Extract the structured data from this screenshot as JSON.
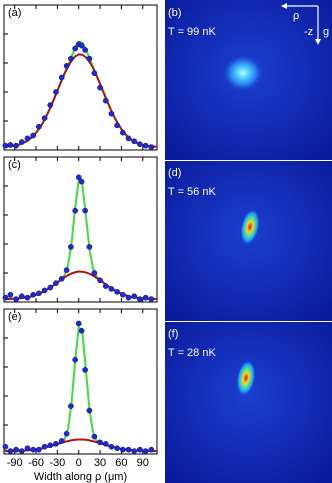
{
  "chart_data": [
    {
      "type": "scatter",
      "label": "(a)",
      "xlim": [
        -105,
        110
      ],
      "ylim": [
        0,
        1
      ],
      "xticks": [
        -90,
        -60,
        -30,
        0,
        30,
        60,
        90
      ],
      "yticks": [
        0,
        0.2,
        0.4,
        0.6,
        0.8
      ],
      "show_xticklabels": false,
      "points": {
        "color": "#1e2ad8",
        "x": [
          -103,
          -96,
          -88,
          -80,
          -72,
          -64,
          -56,
          -48,
          -40,
          -32,
          -24,
          -17,
          -11,
          -5,
          0,
          4,
          9,
          15,
          22,
          30,
          38,
          46,
          54,
          62,
          70,
          78,
          86,
          94,
          102
        ],
        "values": [
          0.03,
          0.035,
          0.03,
          0.055,
          0.08,
          0.1,
          0.16,
          0.22,
          0.31,
          0.4,
          0.5,
          0.58,
          0.63,
          0.7,
          0.73,
          0.72,
          0.69,
          0.63,
          0.53,
          0.43,
          0.34,
          0.25,
          0.17,
          0.12,
          0.08,
          0.06,
          0.04,
          0.03,
          0.02
        ]
      },
      "fits": [
        {
          "color": "#3fdc3a",
          "x": [
            -105,
            -100,
            -95,
            -90,
            -85,
            -80,
            -75,
            -70,
            -65,
            -60,
            -55,
            -50,
            -45,
            -40,
            -35,
            -30,
            -25,
            -20,
            -15,
            -10,
            -5,
            0,
            5,
            10,
            15,
            20,
            25,
            30,
            35,
            40,
            45,
            50,
            55,
            60,
            65,
            70,
            75,
            80,
            85,
            90,
            95,
            100,
            105,
            110
          ],
          "values": [
            0.022,
            0.024,
            0.026,
            0.03,
            0.036,
            0.044,
            0.055,
            0.071,
            0.091,
            0.118,
            0.151,
            0.191,
            0.238,
            0.291,
            0.348,
            0.408,
            0.468,
            0.528,
            0.585,
            0.645,
            0.706,
            0.746,
            0.741,
            0.695,
            0.633,
            0.574,
            0.515,
            0.456,
            0.396,
            0.336,
            0.279,
            0.228,
            0.182,
            0.144,
            0.112,
            0.087,
            0.067,
            0.053,
            0.042,
            0.035,
            0.029,
            0.026,
            0.024,
            0.022
          ]
        },
        {
          "color": "#b3140f",
          "x": [
            -105,
            -100,
            -95,
            -90,
            -85,
            -80,
            -75,
            -70,
            -65,
            -60,
            -55,
            -50,
            -45,
            -40,
            -35,
            -30,
            -25,
            -20,
            -15,
            -10,
            -5,
            0,
            5,
            10,
            15,
            20,
            25,
            30,
            35,
            40,
            45,
            50,
            55,
            60,
            65,
            70,
            75,
            80,
            85,
            90,
            95,
            100,
            105,
            110
          ],
          "values": [
            0.022,
            0.024,
            0.026,
            0.03,
            0.036,
            0.044,
            0.055,
            0.071,
            0.091,
            0.118,
            0.151,
            0.191,
            0.238,
            0.291,
            0.348,
            0.408,
            0.468,
            0.526,
            0.576,
            0.616,
            0.645,
            0.659,
            0.657,
            0.64,
            0.609,
            0.567,
            0.514,
            0.456,
            0.396,
            0.336,
            0.279,
            0.228,
            0.182,
            0.144,
            0.112,
            0.087,
            0.067,
            0.053,
            0.042,
            0.035,
            0.029,
            0.026,
            0.024,
            0.022
          ]
        }
      ]
    },
    {
      "type": "image",
      "label": "(b)",
      "text": "T = 99 nK",
      "axis_names": [
        "ρ",
        "-z",
        "g"
      ]
    },
    {
      "type": "scatter",
      "label": "(c)",
      "xlim": [
        -105,
        110
      ],
      "ylim": [
        0,
        1
      ],
      "xticks": [
        -90,
        -60,
        -30,
        0,
        30,
        60,
        90
      ],
      "yticks": [
        0,
        0.2,
        0.4,
        0.6,
        0.8
      ],
      "show_xticklabels": false,
      "points": {
        "color": "#1e2ad8",
        "x": [
          -103,
          -96,
          -88,
          -80,
          -72,
          -64,
          -56,
          -48,
          -40,
          -32,
          -24,
          -17,
          -11,
          -5,
          0,
          4,
          9,
          15,
          22,
          30,
          38,
          46,
          54,
          62,
          70,
          78,
          86,
          94,
          102
        ],
        "values": [
          0.03,
          0.05,
          0.02,
          0.04,
          0.03,
          0.05,
          0.06,
          0.08,
          0.1,
          0.13,
          0.16,
          0.22,
          0.38,
          0.63,
          0.86,
          0.83,
          0.63,
          0.38,
          0.2,
          0.15,
          0.11,
          0.09,
          0.07,
          0.05,
          0.03,
          0.04,
          0.02,
          0.03,
          0.02
        ]
      },
      "fits": [
        {
          "color": "#3fdc3a",
          "x": [
            -105,
            -100,
            -95,
            -90,
            -85,
            -80,
            -75,
            -70,
            -65,
            -60,
            -55,
            -50,
            -45,
            -40,
            -35,
            -30,
            -25,
            -20,
            -15,
            -10,
            -5,
            0,
            5,
            10,
            15,
            20,
            25,
            30,
            35,
            40,
            45,
            50,
            55,
            60,
            65,
            70,
            75,
            80,
            85,
            90,
            95,
            100,
            105,
            110
          ],
          "values": [
            0.021,
            0.021,
            0.022,
            0.023,
            0.025,
            0.027,
            0.031,
            0.035,
            0.041,
            0.049,
            0.059,
            0.071,
            0.085,
            0.1,
            0.117,
            0.135,
            0.153,
            0.185,
            0.253,
            0.408,
            0.648,
            0.84,
            0.815,
            0.599,
            0.369,
            0.234,
            0.177,
            0.15,
            0.132,
            0.114,
            0.097,
            0.082,
            0.068,
            0.057,
            0.047,
            0.04,
            0.034,
            0.03,
            0.027,
            0.024,
            0.023,
            0.022,
            0.021,
            0.021
          ]
        },
        {
          "color": "#b3140f",
          "x": [
            -105,
            -100,
            -95,
            -90,
            -85,
            -80,
            -75,
            -70,
            -65,
            -60,
            -55,
            -50,
            -45,
            -40,
            -35,
            -30,
            -25,
            -20,
            -15,
            -10,
            -5,
            0,
            5,
            10,
            15,
            20,
            25,
            30,
            35,
            40,
            45,
            50,
            55,
            60,
            65,
            70,
            75,
            80,
            85,
            90,
            95,
            100,
            105,
            110
          ],
          "values": [
            0.021,
            0.021,
            0.022,
            0.023,
            0.025,
            0.027,
            0.031,
            0.035,
            0.041,
            0.049,
            0.059,
            0.071,
            0.085,
            0.1,
            0.117,
            0.135,
            0.153,
            0.17,
            0.185,
            0.197,
            0.205,
            0.21,
            0.209,
            0.204,
            0.195,
            0.182,
            0.167,
            0.15,
            0.132,
            0.114,
            0.097,
            0.082,
            0.068,
            0.057,
            0.047,
            0.04,
            0.034,
            0.03,
            0.027,
            0.024,
            0.023,
            0.022,
            0.021,
            0.021
          ]
        }
      ]
    },
    {
      "type": "image",
      "label": "(d)",
      "text": "T = 56 nK"
    },
    {
      "type": "scatter",
      "label": "(e)",
      "xlim": [
        -105,
        110
      ],
      "ylim": [
        0,
        1
      ],
      "xticks": [
        -90,
        -60,
        -30,
        0,
        30,
        60,
        90
      ],
      "yticks": [
        0,
        0.2,
        0.4,
        0.6,
        0.8
      ],
      "show_xticklabels": true,
      "xlabel": "Width along ρ (μm)",
      "points": {
        "color": "#1e2ad8",
        "x": [
          -103,
          -96,
          -88,
          -80,
          -72,
          -64,
          -56,
          -48,
          -40,
          -32,
          -24,
          -17,
          -11,
          -5,
          0,
          4,
          9,
          15,
          22,
          30,
          38,
          46,
          54,
          62,
          70,
          78,
          86,
          94,
          102
        ],
        "values": [
          0.05,
          0.02,
          0.03,
          0.02,
          0.04,
          0.03,
          0.03,
          0.05,
          0.06,
          0.07,
          0.09,
          0.14,
          0.33,
          0.65,
          0.9,
          0.85,
          0.58,
          0.3,
          0.12,
          0.08,
          0.07,
          0.05,
          0.04,
          0.03,
          0.03,
          0.02,
          0.03,
          0.02,
          0.03
        ]
      },
      "fits": [
        {
          "color": "#3fdc3a",
          "x": [
            -105,
            -100,
            -95,
            -90,
            -85,
            -80,
            -75,
            -70,
            -65,
            -60,
            -55,
            -50,
            -45,
            -40,
            -35,
            -30,
            -25,
            -20,
            -15,
            -10,
            -5,
            0,
            5,
            10,
            15,
            20,
            25,
            30,
            35,
            40,
            45,
            50,
            55,
            60,
            65,
            70,
            75,
            80,
            85,
            90,
            95,
            100,
            105,
            110
          ],
          "values": [
            0.02,
            0.02,
            0.021,
            0.021,
            0.022,
            0.023,
            0.024,
            0.026,
            0.029,
            0.032,
            0.036,
            0.041,
            0.047,
            0.054,
            0.061,
            0.069,
            0.076,
            0.101,
            0.173,
            0.355,
            0.644,
            0.875,
            0.846,
            0.584,
            0.308,
            0.152,
            0.095,
            0.075,
            0.067,
            0.06,
            0.052,
            0.046,
            0.04,
            0.035,
            0.032,
            0.028,
            0.026,
            0.024,
            0.023,
            0.022,
            0.021,
            0.021,
            0.02,
            0.02
          ]
        },
        {
          "color": "#b3140f",
          "x": [
            -105,
            -100,
            -95,
            -90,
            -85,
            -80,
            -75,
            -70,
            -65,
            -60,
            -55,
            -50,
            -45,
            -40,
            -35,
            -30,
            -25,
            -20,
            -15,
            -10,
            -5,
            0,
            5,
            10,
            15,
            20,
            25,
            30,
            35,
            40,
            45,
            50,
            55,
            60,
            65,
            70,
            75,
            80,
            85,
            90,
            95,
            100,
            105,
            110
          ],
          "values": [
            0.02,
            0.02,
            0.021,
            0.021,
            0.022,
            0.023,
            0.024,
            0.026,
            0.029,
            0.032,
            0.036,
            0.041,
            0.047,
            0.054,
            0.061,
            0.069,
            0.076,
            0.083,
            0.089,
            0.095,
            0.098,
            0.1,
            0.1,
            0.098,
            0.094,
            0.088,
            0.082,
            0.075,
            0.067,
            0.06,
            0.052,
            0.046,
            0.04,
            0.035,
            0.032,
            0.028,
            0.026,
            0.024,
            0.023,
            0.022,
            0.021,
            0.021,
            0.02,
            0.02
          ]
        }
      ]
    },
    {
      "type": "image",
      "label": "(f)",
      "text": "T = 28 nK"
    }
  ]
}
